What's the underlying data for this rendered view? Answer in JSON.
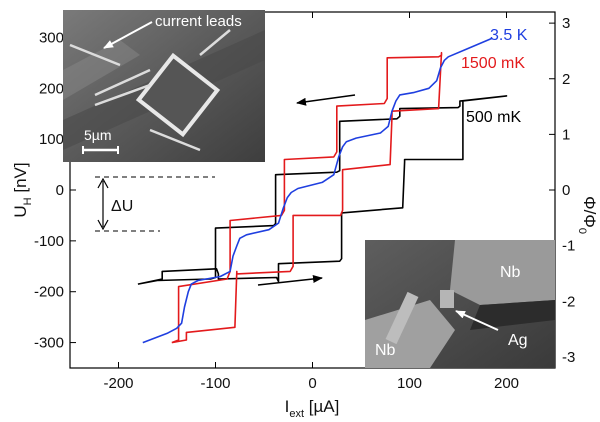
{
  "chart_data": {
    "type": "line",
    "xlabel": "I",
    "xlabel_sub": "ext",
    "xlabel_unit": " [µA]",
    "ylabel": "U",
    "ylabel_sub": "H",
    "ylabel_unit": " [nV]",
    "y2label": "Φ/Φ",
    "y2label_sub": "0",
    "xlim": [
      -250,
      250
    ],
    "ylim": [
      -350,
      350
    ],
    "y2lim": [
      -3.2,
      3.2
    ],
    "xticks": [
      -200,
      -100,
      0,
      100,
      200
    ],
    "yticks": [
      -300,
      -200,
      -100,
      0,
      100,
      200,
      300
    ],
    "y2ticks": [
      -3,
      -2,
      -1,
      0,
      1,
      2,
      3
    ],
    "grid": false,
    "series": [
      {
        "name": "500 mK",
        "color": "#000000",
        "x": [
          -180,
          -160,
          -105,
          -100,
          -100,
          -40,
          -38,
          -38,
          25,
          28,
          28,
          87,
          90,
          90,
          150,
          152,
          152,
          200,
          200,
          155,
          155,
          95,
          95,
          93,
          30,
          30,
          28,
          -35,
          -35,
          -37,
          -97,
          -97,
          -99,
          -155,
          -155,
          -180
        ],
        "y": [
          -185,
          -178,
          -175,
          -172,
          -75,
          -70,
          -66,
          30,
          35,
          38,
          135,
          140,
          145,
          160,
          162,
          165,
          175,
          185,
          185,
          175,
          60,
          60,
          55,
          -35,
          -45,
          -135,
          -140,
          -145,
          -180,
          -172,
          -175,
          -165,
          -155,
          -160,
          -175,
          -185
        ]
      },
      {
        "name": "1500 mK",
        "color": "#e31a1c",
        "x": [
          -145,
          -138,
          -138,
          -88,
          -85,
          -85,
          -32,
          -29,
          -29,
          22,
          25,
          25,
          74,
          77,
          77,
          130,
          133,
          133,
          130,
          82,
          82,
          80,
          31,
          31,
          29,
          -20,
          -20,
          -23,
          -78,
          -78,
          -80,
          -130,
          -130,
          -145
        ],
        "y": [
          -300,
          -295,
          -190,
          -175,
          -160,
          -60,
          -50,
          -40,
          60,
          65,
          75,
          165,
          170,
          180,
          260,
          262,
          265,
          270,
          160,
          155,
          145,
          50,
          40,
          -40,
          -50,
          -50,
          -150,
          -160,
          -165,
          -160,
          -270,
          -280,
          -295,
          -300
        ]
      },
      {
        "name": "3.5 K",
        "color": "#1f3fe0",
        "x": [
          -175,
          -150,
          -140,
          -135,
          -132,
          -128,
          -125,
          -118,
          -95,
          -85,
          -82,
          -78,
          -75,
          -68,
          -45,
          -35,
          -30,
          -26,
          -22,
          -15,
          10,
          22,
          27,
          31,
          35,
          45,
          70,
          78,
          82,
          86,
          90,
          105,
          120,
          128,
          132,
          136,
          140,
          160,
          185
        ],
        "y": [
          -300,
          -282,
          -272,
          -262,
          -230,
          -200,
          -185,
          -178,
          -170,
          -160,
          -130,
          -110,
          -95,
          -88,
          -78,
          -65,
          -35,
          -15,
          -5,
          3,
          15,
          30,
          65,
          85,
          95,
          102,
          112,
          125,
          155,
          175,
          187,
          192,
          200,
          215,
          240,
          255,
          262,
          278,
          298
        ]
      }
    ],
    "annotations": {
      "delta_u": "ΔU",
      "inset1_label": "current leads",
      "inset1_scale": "5µm",
      "inset2_nb_top": "Nb",
      "inset2_nb_bottom": "Nb",
      "inset2_ag": "Ag"
    }
  }
}
